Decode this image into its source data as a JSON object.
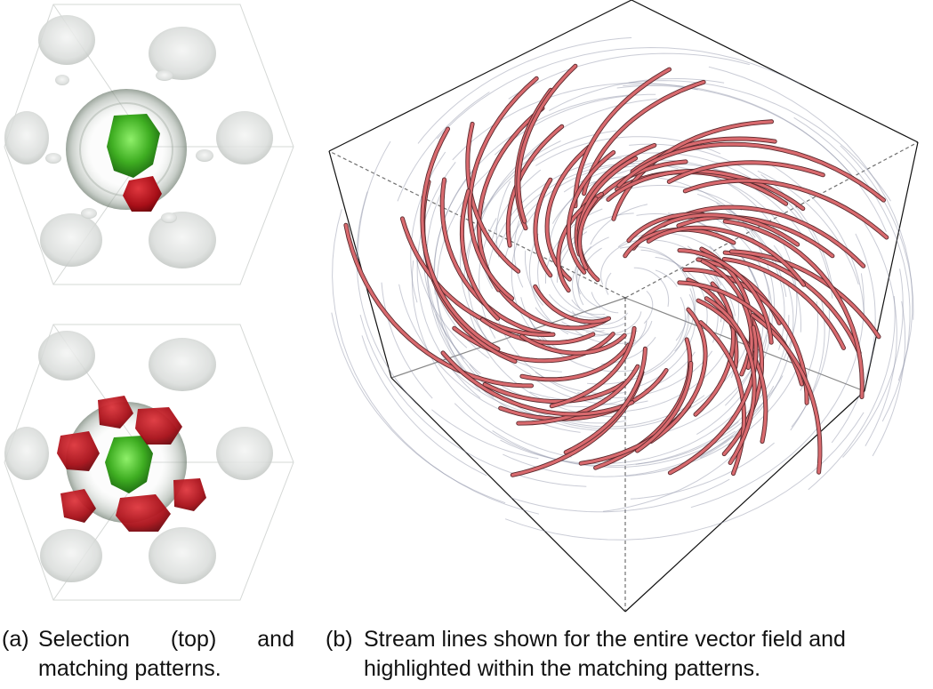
{
  "figure": {
    "subfigure_a": {
      "label": "(a)",
      "caption": "Selection (top) and matching patterns."
    },
    "subfigure_b": {
      "label": "(b)",
      "caption": "Stream lines shown for the entire vector field and highlighted within the matching patterns."
    }
  },
  "colors": {
    "selection": "#4bbf2a",
    "match": "#b3121c",
    "streamline_highlight": "#d96a6e",
    "streamline_context": "#8a8fa3",
    "context_blob": "#cfd3d0"
  }
}
